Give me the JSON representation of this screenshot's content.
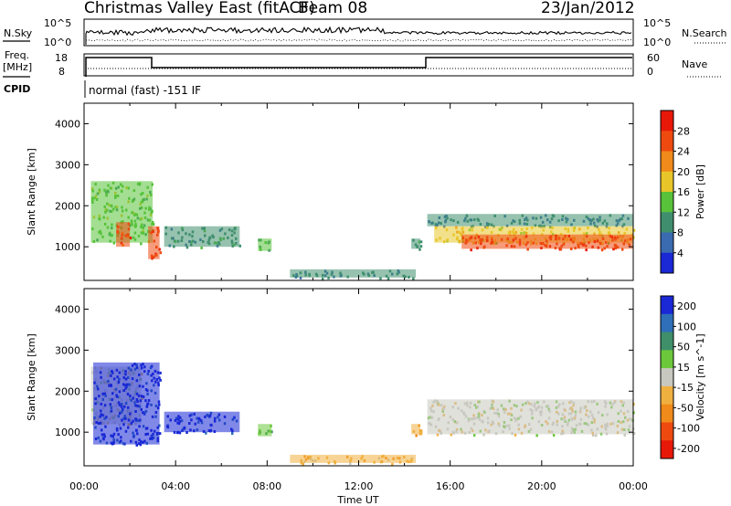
{
  "header": {
    "title": "Christmas Valley East (fitACF)",
    "beam": "Beam 08",
    "date": "23/Jan/2012"
  },
  "noise_panel": {
    "left_label": "N.Sky",
    "right_label": "N.Search",
    "left_ticks": [
      "10^5",
      "10^0"
    ],
    "right_ticks": [
      "10^5",
      "10^0"
    ]
  },
  "freq_panel": {
    "left_label_line1": "Freq.",
    "left_label_line2": "[MHz]",
    "right_label": "Nave",
    "left_ticks": [
      "18",
      "8"
    ],
    "right_ticks": [
      "60",
      "0"
    ]
  },
  "cpid": {
    "label": "CPID",
    "text": "normal (fast) -151 IF"
  },
  "colors": {
    "power_scale": [
      "#1a28d6",
      "#3a6ab0",
      "#3f8f6e",
      "#58c23a",
      "#e8c62a",
      "#f08a1a",
      "#ee4a10",
      "#e81808"
    ],
    "velocity_scale": [
      "#1a28d6",
      "#2e6fb8",
      "#3e8f6a",
      "#6cc83a",
      "#c8c8c0",
      "#f0b040",
      "#f08a1a",
      "#ee4a10",
      "#e81808"
    ]
  },
  "chart_data": [
    {
      "type": "heatmap",
      "panel": "power",
      "ylabel": "Slant Range [km]",
      "ylim": [
        180,
        4500
      ],
      "yticks": [
        1000,
        2000,
        3000,
        4000
      ],
      "xlim": [
        0,
        24
      ],
      "colorbar": {
        "label": "Power [dB]",
        "range": [
          0,
          32
        ],
        "ticks": [
          4,
          8,
          12,
          16,
          20,
          24,
          28
        ]
      },
      "regions": [
        {
          "t": [
            0.3,
            3.0
          ],
          "r": [
            1100,
            2600
          ],
          "value": 14
        },
        {
          "t": [
            1.4,
            2.0
          ],
          "r": [
            1000,
            1600
          ],
          "value": 26
        },
        {
          "t": [
            2.8,
            3.3
          ],
          "r": [
            700,
            1500
          ],
          "value": 27
        },
        {
          "t": [
            3.5,
            6.8
          ],
          "r": [
            1000,
            1500
          ],
          "value": 10
        },
        {
          "t": [
            7.6,
            8.2
          ],
          "r": [
            900,
            1200
          ],
          "value": 12
        },
        {
          "t": [
            9.0,
            14.5
          ],
          "r": [
            250,
            450
          ],
          "value": 9
        },
        {
          "t": [
            14.3,
            14.7
          ],
          "r": [
            950,
            1200
          ],
          "value": 11
        },
        {
          "t": [
            15.0,
            24.0
          ],
          "r": [
            1500,
            1800
          ],
          "value": 8
        },
        {
          "t": [
            15.3,
            24.0
          ],
          "r": [
            1100,
            1500
          ],
          "value": 18
        },
        {
          "t": [
            16.5,
            24.0
          ],
          "r": [
            950,
            1300
          ],
          "value": 27
        }
      ]
    },
    {
      "type": "heatmap",
      "panel": "velocity",
      "xlabel": "Time UT",
      "ylabel": "Slant Range [km]",
      "ylim": [
        180,
        4500
      ],
      "yticks": [
        1000,
        2000,
        3000,
        4000
      ],
      "xlim": [
        0,
        24
      ],
      "xticks": [
        "00:00",
        "04:00",
        "08:00",
        "12:00",
        "16:00",
        "20:00",
        "00:00"
      ],
      "colorbar": {
        "label": "Velocity [m s^-1]",
        "range": [
          -250,
          250
        ],
        "ticks": [
          200,
          100,
          50,
          15,
          -15,
          -50,
          -100,
          -200
        ]
      },
      "regions": [
        {
          "t": [
            0.3,
            2.5
          ],
          "r": [
            1200,
            2600
          ],
          "value": 0
        },
        {
          "t": [
            0.4,
            3.3
          ],
          "r": [
            700,
            2700
          ],
          "value": 220
        },
        {
          "t": [
            3.5,
            6.8
          ],
          "r": [
            1000,
            1500
          ],
          "value": 210
        },
        {
          "t": [
            7.6,
            8.2
          ],
          "r": [
            900,
            1200
          ],
          "value": 60
        },
        {
          "t": [
            9.0,
            14.5
          ],
          "r": [
            250,
            450
          ],
          "value": -60
        },
        {
          "t": [
            14.3,
            14.7
          ],
          "r": [
            950,
            1200
          ],
          "value": -80
        },
        {
          "t": [
            15.0,
            24.0
          ],
          "r": [
            950,
            1800
          ],
          "value": 0
        }
      ]
    }
  ]
}
